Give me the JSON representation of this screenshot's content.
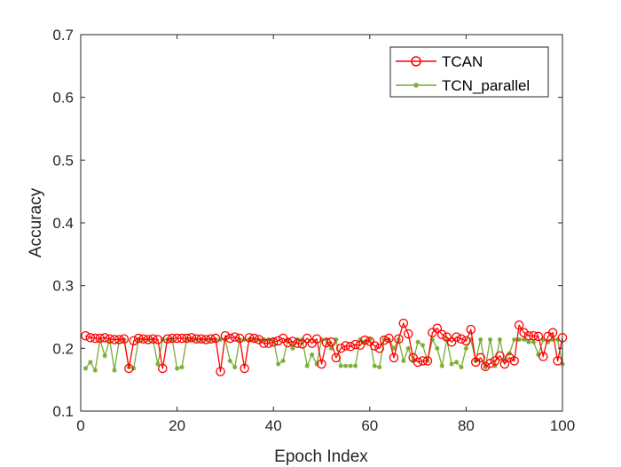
{
  "chart_data": {
    "type": "line",
    "title": "",
    "xlabel": "Epoch Index",
    "ylabel": "Accuracy",
    "xlim": [
      0,
      100
    ],
    "ylim": [
      0.1,
      0.7
    ],
    "xticks": [
      "0",
      "20",
      "40",
      "60",
      "80",
      "100"
    ],
    "yticks": [
      "0.1",
      "0.2",
      "0.3",
      "0.4",
      "0.5",
      "0.6",
      "0.7"
    ],
    "legend_position": "top-right",
    "grid": false,
    "x": [
      1,
      2,
      3,
      4,
      5,
      6,
      7,
      8,
      9,
      10,
      11,
      12,
      13,
      14,
      15,
      16,
      17,
      18,
      19,
      20,
      21,
      22,
      23,
      24,
      25,
      26,
      27,
      28,
      29,
      30,
      31,
      32,
      33,
      34,
      35,
      36,
      37,
      38,
      39,
      40,
      41,
      42,
      43,
      44,
      45,
      46,
      47,
      48,
      49,
      50,
      51,
      52,
      53,
      54,
      55,
      56,
      57,
      58,
      59,
      60,
      61,
      62,
      63,
      64,
      65,
      66,
      67,
      68,
      69,
      70,
      71,
      72,
      73,
      74,
      75,
      76,
      77,
      78,
      79,
      80,
      81,
      82,
      83,
      84,
      85,
      86,
      87,
      88,
      89,
      90,
      91,
      92,
      93,
      94,
      95,
      96,
      97,
      98,
      99,
      100
    ],
    "series": [
      {
        "name": "TCAN",
        "color": "#ff0000",
        "marker": "circle",
        "values": [
          0.22,
          0.217,
          0.216,
          0.216,
          0.217,
          0.215,
          0.214,
          0.214,
          0.215,
          0.168,
          0.212,
          0.216,
          0.215,
          0.214,
          0.215,
          0.214,
          0.168,
          0.215,
          0.216,
          0.216,
          0.216,
          0.216,
          0.217,
          0.215,
          0.215,
          0.214,
          0.215,
          0.216,
          0.163,
          0.22,
          0.216,
          0.218,
          0.216,
          0.168,
          0.217,
          0.216,
          0.214,
          0.208,
          0.208,
          0.21,
          0.212,
          0.216,
          0.209,
          0.211,
          0.208,
          0.207,
          0.216,
          0.208,
          0.215,
          0.175,
          0.209,
          0.21,
          0.185,
          0.2,
          0.204,
          0.203,
          0.206,
          0.205,
          0.213,
          0.211,
          0.204,
          0.2,
          0.213,
          0.216,
          0.185,
          0.215,
          0.24,
          0.223,
          0.185,
          0.178,
          0.18,
          0.18,
          0.225,
          0.232,
          0.222,
          0.218,
          0.21,
          0.218,
          0.215,
          0.212,
          0.23,
          0.178,
          0.185,
          0.171,
          0.176,
          0.18,
          0.188,
          0.175,
          0.185,
          0.18,
          0.237,
          0.225,
          0.22,
          0.22,
          0.219,
          0.187,
          0.219,
          0.225,
          0.18,
          0.217
        ]
      },
      {
        "name": "TCN_parallel",
        "color": "#77ac30",
        "marker": "asterisk",
        "values": [
          0.168,
          0.178,
          0.165,
          0.214,
          0.188,
          0.214,
          0.165,
          0.214,
          0.214,
          0.17,
          0.168,
          0.214,
          0.214,
          0.214,
          0.214,
          0.175,
          0.214,
          0.214,
          0.214,
          0.168,
          0.17,
          0.214,
          0.214,
          0.214,
          0.214,
          0.214,
          0.214,
          0.214,
          0.214,
          0.214,
          0.18,
          0.17,
          0.214,
          0.214,
          0.214,
          0.214,
          0.214,
          0.214,
          0.214,
          0.214,
          0.175,
          0.18,
          0.214,
          0.2,
          0.214,
          0.214,
          0.172,
          0.19,
          0.175,
          0.214,
          0.214,
          0.2,
          0.214,
          0.172,
          0.172,
          0.172,
          0.172,
          0.214,
          0.21,
          0.214,
          0.172,
          0.17,
          0.214,
          0.214,
          0.2,
          0.214,
          0.18,
          0.2,
          0.18,
          0.21,
          0.205,
          0.18,
          0.214,
          0.2,
          0.172,
          0.214,
          0.175,
          0.178,
          0.17,
          0.2,
          0.214,
          0.18,
          0.214,
          0.17,
          0.214,
          0.172,
          0.214,
          0.18,
          0.192,
          0.214,
          0.214,
          0.214,
          0.21,
          0.21,
          0.19,
          0.214,
          0.21,
          0.214,
          0.214,
          0.175
        ]
      }
    ]
  }
}
